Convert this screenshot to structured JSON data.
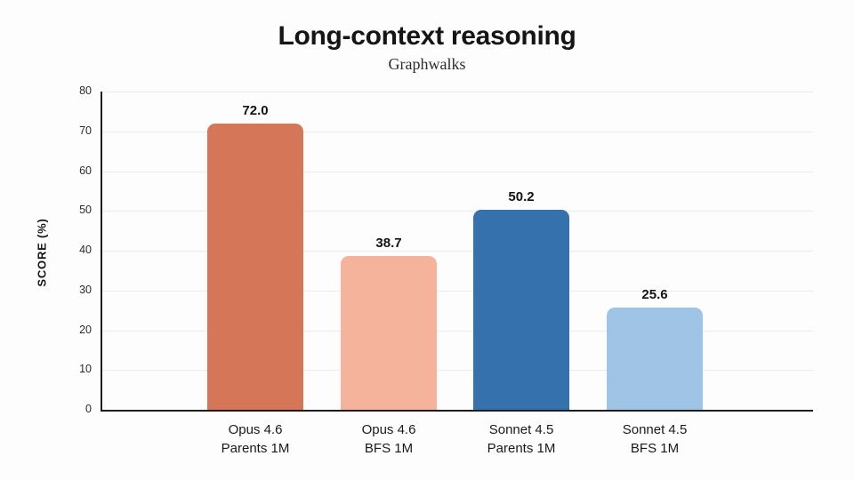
{
  "title": "Long-context reasoning",
  "subtitle": "Graphwalks",
  "chart_data": {
    "type": "bar",
    "categories": [
      {
        "line1": "Opus 4.6",
        "line2": "Parents 1M"
      },
      {
        "line1": "Opus 4.6",
        "line2": "BFS 1M"
      },
      {
        "line1": "Sonnet 4.5",
        "line2": "Parents 1M"
      },
      {
        "line1": "Sonnet 4.5",
        "line2": "BFS 1M"
      }
    ],
    "values": [
      72.0,
      38.7,
      50.2,
      25.6
    ],
    "value_labels": [
      "72.0",
      "38.7",
      "50.2",
      "25.6"
    ],
    "bar_colors": [
      "#D47657",
      "#F4B39A",
      "#3571AD",
      "#A0C4E6"
    ],
    "ylabel": "SCORE (%)",
    "ylim": [
      0,
      80
    ],
    "yticks": [
      0,
      10,
      20,
      30,
      40,
      50,
      60,
      70,
      80
    ],
    "grid": true,
    "legend": false
  },
  "colors": {
    "background": "#fdfdfd",
    "axis": "#1c1c1c",
    "gridline": "#ececec",
    "title_text": "#151515",
    "subtitle_text": "#2d2d2d",
    "tick_text": "#2b2b2b",
    "value_label_text": "#131313"
  }
}
